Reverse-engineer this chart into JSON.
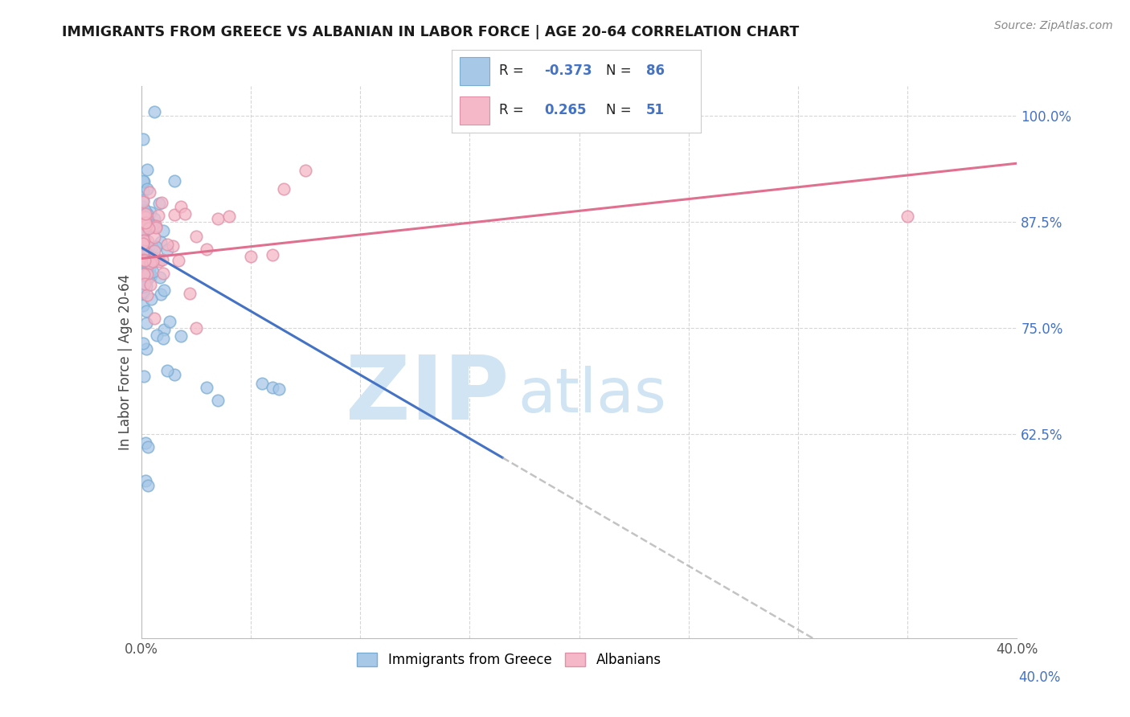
{
  "title": "IMMIGRANTS FROM GREECE VS ALBANIAN IN LABOR FORCE | AGE 20-64 CORRELATION CHART",
  "source": "Source: ZipAtlas.com",
  "ylabel": "In Labor Force | Age 20-64",
  "xlim": [
    0.0,
    0.4
  ],
  "ylim": [
    0.385,
    1.035
  ],
  "ytick_vals": [
    1.0,
    0.875,
    0.75,
    0.625
  ],
  "ytick_labels": [
    "100.0%",
    "87.5%",
    "75.0%",
    "62.5%"
  ],
  "legend_blue_r": "-0.373",
  "legend_blue_n": "86",
  "legend_pink_r": "0.265",
  "legend_pink_n": "51",
  "legend_label_blue": "Immigrants from Greece",
  "legend_label_pink": "Albanians",
  "watermark_zip": "ZIP",
  "watermark_atlas": "atlas",
  "blue_color": "#A8C8E8",
  "blue_edge_color": "#7AADD4",
  "blue_line_color": "#4472C4",
  "pink_color": "#F4B8C8",
  "pink_edge_color": "#E090A8",
  "pink_line_color": "#E07090",
  "watermark_color": "#D0E4F4",
  "background_color": "#FFFFFF",
  "grid_color": "#CCCCCC",
  "r_color": "#4472C4",
  "title_color": "#1A1A1A",
  "source_color": "#888888"
}
